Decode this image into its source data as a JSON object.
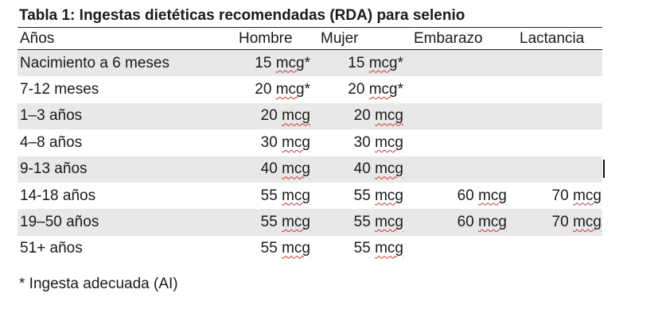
{
  "title": "Tabla 1: Ingestas dietéticas recomendadas (RDA) para selenio",
  "columns": {
    "age": "Años",
    "hombre": "Hombre",
    "mujer": "Mujer",
    "embarazo": "Embarazo",
    "lactancia": "Lactancia"
  },
  "rows": [
    {
      "age": "Nacimiento a 6 meses",
      "hombre": {
        "num": "15",
        "unit": "mcg",
        "mark": " *"
      },
      "mujer": {
        "num": "15",
        "unit": "mcg",
        "mark": " *"
      },
      "embarazo": {
        "num": "",
        "unit": "",
        "mark": ""
      },
      "lactancia": {
        "num": "",
        "unit": "",
        "mark": ""
      }
    },
    {
      "age": "7-12 meses",
      "hombre": {
        "num": "20",
        "unit": "mcg",
        "mark": " *"
      },
      "mujer": {
        "num": "20",
        "unit": "mcg",
        "mark": " *"
      },
      "embarazo": {
        "num": "",
        "unit": "",
        "mark": ""
      },
      "lactancia": {
        "num": "",
        "unit": "",
        "mark": ""
      }
    },
    {
      "age": "1–3 años",
      "hombre": {
        "num": "20",
        "unit": "mcg",
        "mark": ""
      },
      "mujer": {
        "num": "20",
        "unit": "mcg",
        "mark": ""
      },
      "embarazo": {
        "num": "",
        "unit": "",
        "mark": ""
      },
      "lactancia": {
        "num": "",
        "unit": "",
        "mark": ""
      }
    },
    {
      "age": "4–8 años",
      "hombre": {
        "num": "30",
        "unit": "mcg",
        "mark": ""
      },
      "mujer": {
        "num": "30",
        "unit": "mcg",
        "mark": ""
      },
      "embarazo": {
        "num": "",
        "unit": "",
        "mark": ""
      },
      "lactancia": {
        "num": "",
        "unit": "",
        "mark": ""
      }
    },
    {
      "age": "9-13 años",
      "hombre": {
        "num": "40",
        "unit": "mcg",
        "mark": ""
      },
      "mujer": {
        "num": "40",
        "unit": "mcg",
        "mark": ""
      },
      "embarazo": {
        "num": "",
        "unit": "",
        "mark": ""
      },
      "lactancia": {
        "num": "",
        "unit": "",
        "mark": ""
      }
    },
    {
      "age": "14-18 años",
      "hombre": {
        "num": "55",
        "unit": "mcg",
        "mark": ""
      },
      "mujer": {
        "num": "55",
        "unit": "mcg",
        "mark": ""
      },
      "embarazo": {
        "num": "60",
        "unit": "mcg",
        "mark": ""
      },
      "lactancia": {
        "num": "70",
        "unit": "mcg",
        "mark": ""
      }
    },
    {
      "age": "19–50 años",
      "hombre": {
        "num": "55",
        "unit": "mcg",
        "mark": ""
      },
      "mujer": {
        "num": "55",
        "unit": "mcg",
        "mark": ""
      },
      "embarazo": {
        "num": "60",
        "unit": "mcg",
        "mark": ""
      },
      "lactancia": {
        "num": "70",
        "unit": "mcg",
        "mark": ""
      }
    },
    {
      "age": "51+ años",
      "hombre": {
        "num": "55",
        "unit": "mcg",
        "mark": ""
      },
      "mujer": {
        "num": "55",
        "unit": "mcg",
        "mark": ""
      },
      "embarazo": {
        "num": "",
        "unit": "",
        "mark": ""
      },
      "lactancia": {
        "num": "",
        "unit": "",
        "mark": ""
      }
    }
  ],
  "note": "* Ingesta adecuada (AI)",
  "colors": {
    "row_shade": "#e8e8e8",
    "spellcheck_underline": "#d03030"
  }
}
